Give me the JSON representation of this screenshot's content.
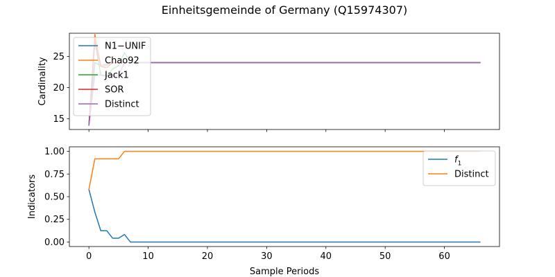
{
  "figure": {
    "title": "Einheitsgemeinde of Germany (Q15974307)"
  },
  "chart_data": [
    {
      "type": "line",
      "ylabel": "Cardinality",
      "xlabel": "",
      "xlim": [
        -3.3,
        69.3
      ],
      "ylim": [
        13.3,
        28.7
      ],
      "xticks": [
        0,
        10,
        20,
        30,
        40,
        50,
        60
      ],
      "show_xtick_labels": false,
      "yticks": [
        15,
        20,
        25
      ],
      "ytick_labels": [
        "15",
        "20",
        "25"
      ],
      "grid": false,
      "legend_position": "upper-left",
      "series": [
        {
          "name": "N1−UNIF",
          "color": "#1f77b4",
          "x": [
            0,
            1,
            2,
            3,
            4,
            5,
            6,
            7,
            8,
            66
          ],
          "y": [
            14,
            24,
            23.5,
            23.8,
            24,
            24,
            24,
            24,
            24,
            24
          ]
        },
        {
          "name": "Chao92",
          "color": "#ff7f0e",
          "x": [
            0,
            1,
            2,
            3,
            4,
            5,
            6,
            7,
            8,
            66
          ],
          "y": [
            14,
            28.5,
            23.6,
            23.5,
            24,
            24,
            24,
            24,
            24,
            24
          ]
        },
        {
          "name": "Jack1",
          "color": "#2ca02c",
          "x": [
            0,
            1,
            2,
            3,
            4,
            5,
            6,
            7,
            8,
            66
          ],
          "y": [
            14,
            27.5,
            22,
            21.8,
            23,
            23.5,
            25.6,
            24,
            24,
            24
          ]
        },
        {
          "name": "SOR",
          "color": "#d62728",
          "x": [
            0,
            1,
            2,
            3,
            4,
            5,
            6,
            7,
            8,
            66
          ],
          "y": [
            14,
            27.8,
            23.4,
            23.2,
            24,
            24,
            24,
            24,
            24,
            24
          ]
        },
        {
          "name": "Distinct",
          "color": "#9467bd",
          "x": [
            0,
            1,
            2,
            3,
            4,
            5,
            6,
            7,
            8,
            66
          ],
          "y": [
            14,
            22,
            22,
            22,
            22,
            22,
            24,
            24,
            24,
            24
          ]
        }
      ]
    },
    {
      "type": "line",
      "ylabel": "Indicators",
      "xlabel": "Sample Periods",
      "xlim": [
        -3.3,
        69.3
      ],
      "ylim": [
        -0.05,
        1.05
      ],
      "xticks": [
        0,
        10,
        20,
        30,
        40,
        50,
        60
      ],
      "xtick_labels": [
        "0",
        "10",
        "20",
        "30",
        "40",
        "50",
        "60"
      ],
      "yticks": [
        0,
        0.25,
        0.5,
        0.75,
        1.0
      ],
      "ytick_labels": [
        "0.00",
        "0.25",
        "0.50",
        "0.75",
        "1.00"
      ],
      "grid": false,
      "legend_position": "upper-right",
      "series": [
        {
          "name": "f₁",
          "label_base": "f",
          "label_sub": "1",
          "color": "#1f77b4",
          "x": [
            0,
            1,
            2,
            3,
            4,
            5,
            6,
            7,
            66
          ],
          "y": [
            0.58,
            0.33,
            0.125,
            0.125,
            0.042,
            0.042,
            0.083,
            0,
            0
          ]
        },
        {
          "name": "Distinct",
          "color": "#ff7f0e",
          "x": [
            0,
            1,
            2,
            3,
            4,
            5,
            6,
            66
          ],
          "y": [
            0.58,
            0.917,
            0.917,
            0.917,
            0.917,
            0.917,
            1.0,
            1.0
          ]
        }
      ]
    }
  ]
}
